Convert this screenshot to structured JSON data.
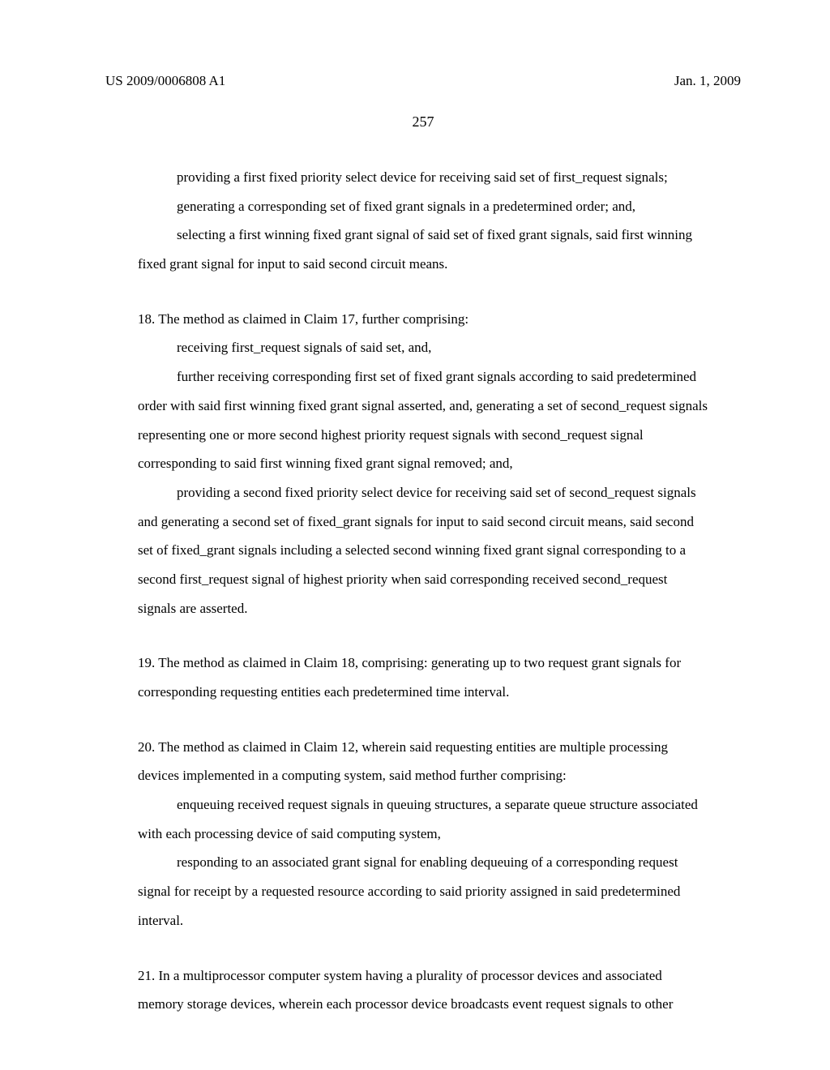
{
  "header": {
    "left": "US 2009/0006808 A1",
    "right": "Jan. 1, 2009"
  },
  "page_number": "257",
  "p1": "providing a first fixed priority select device for receiving said set of first_request signals;",
  "p2": "generating a corresponding set of fixed grant signals in a predetermined order; and,",
  "p3": "selecting a first winning fixed grant signal of said set of fixed grant signals, said first winning fixed grant signal for input to said second circuit means.",
  "c18_lead": "18.  The method as claimed in Claim 17, further comprising:",
  "c18_p1": "receiving first_request signals of said set, and,",
  "c18_p2": "further receiving corresponding first set of fixed grant signals according to said predetermined order with said first winning fixed grant signal asserted, and, generating a set of second_request signals representing one or more second highest priority request signals with second_request signal corresponding to said first winning fixed grant signal removed; and,",
  "c18_p3": "providing a second fixed priority select device for receiving said set of second_request signals and generating a second set of fixed_grant signals for input to said second circuit means, said second set of fixed_grant signals including a selected second winning fixed grant signal corresponding to a second first_request signal of highest priority when said corresponding received second_request signals are asserted.",
  "c19": "19.  The method as claimed in Claim 18, comprising: generating up to two request grant signals for corresponding requesting entities each predetermined time interval.",
  "c20_lead": "20.  The method as claimed in Claim 12, wherein said requesting entities are multiple processing devices implemented in a computing system, said method further comprising:",
  "c20_p1": "enqueuing received request signals in queuing structures, a separate queue structure associated with each processing device of said computing system,",
  "c20_p2": "responding to an associated grant signal for enabling dequeuing of a corresponding request signal for receipt by a requested resource according to said priority assigned in said predetermined interval.",
  "c21": "21.  In a multiprocessor computer system having a plurality of processor devices and associated memory storage devices, wherein each processor device broadcasts event request signals to other"
}
